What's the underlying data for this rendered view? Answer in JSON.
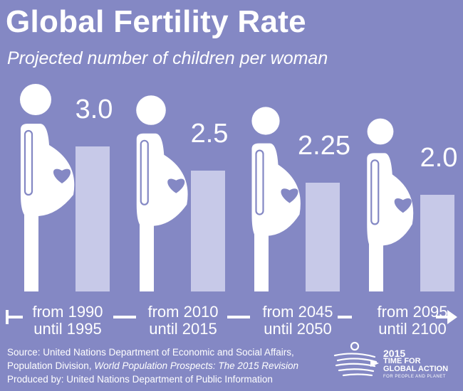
{
  "title": "Global Fertility Rate",
  "subtitle": "Projected number of children per woman",
  "chart_data": {
    "type": "bar",
    "title": "Global Fertility Rate",
    "subtitle": "Projected number of children per woman",
    "categories": [
      {
        "line1": "from 1990",
        "line2": "until 1995"
      },
      {
        "line1": "from 2010",
        "line2": "until 2015"
      },
      {
        "line1": "from 2045",
        "line2": "until 2050"
      },
      {
        "line1": "from 2095",
        "line2": "until 2100"
      }
    ],
    "values": [
      3.0,
      2.5,
      2.25,
      2.0
    ],
    "value_labels": [
      "3.0",
      "2.5",
      "2.25",
      "2.0"
    ],
    "ylim": [
      0,
      3.4
    ],
    "grid": false,
    "legend": "none"
  },
  "source": {
    "line1": "Source: United Nations Department of Economic and Social Affairs,",
    "line2_prefix": "Population Division, ",
    "line2_italic": "World Population Prospects: The 2015 Revision",
    "line3": "Produced by: United Nations Department of Public Information"
  },
  "logo": {
    "year": "2015",
    "line1": "TIME FOR",
    "line2": "GLOBAL ACTION",
    "line3": "FOR PEOPLE AND PLANET"
  },
  "colors": {
    "background": "#8488c4",
    "bar": "#c7c9e8",
    "figure": "#ffffff",
    "figure_detail": "#8488c4"
  },
  "icons": [
    "pregnant-woman-icon",
    "heart-icon",
    "timeline-arrow-icon",
    "un-2015-logo-icon"
  ]
}
